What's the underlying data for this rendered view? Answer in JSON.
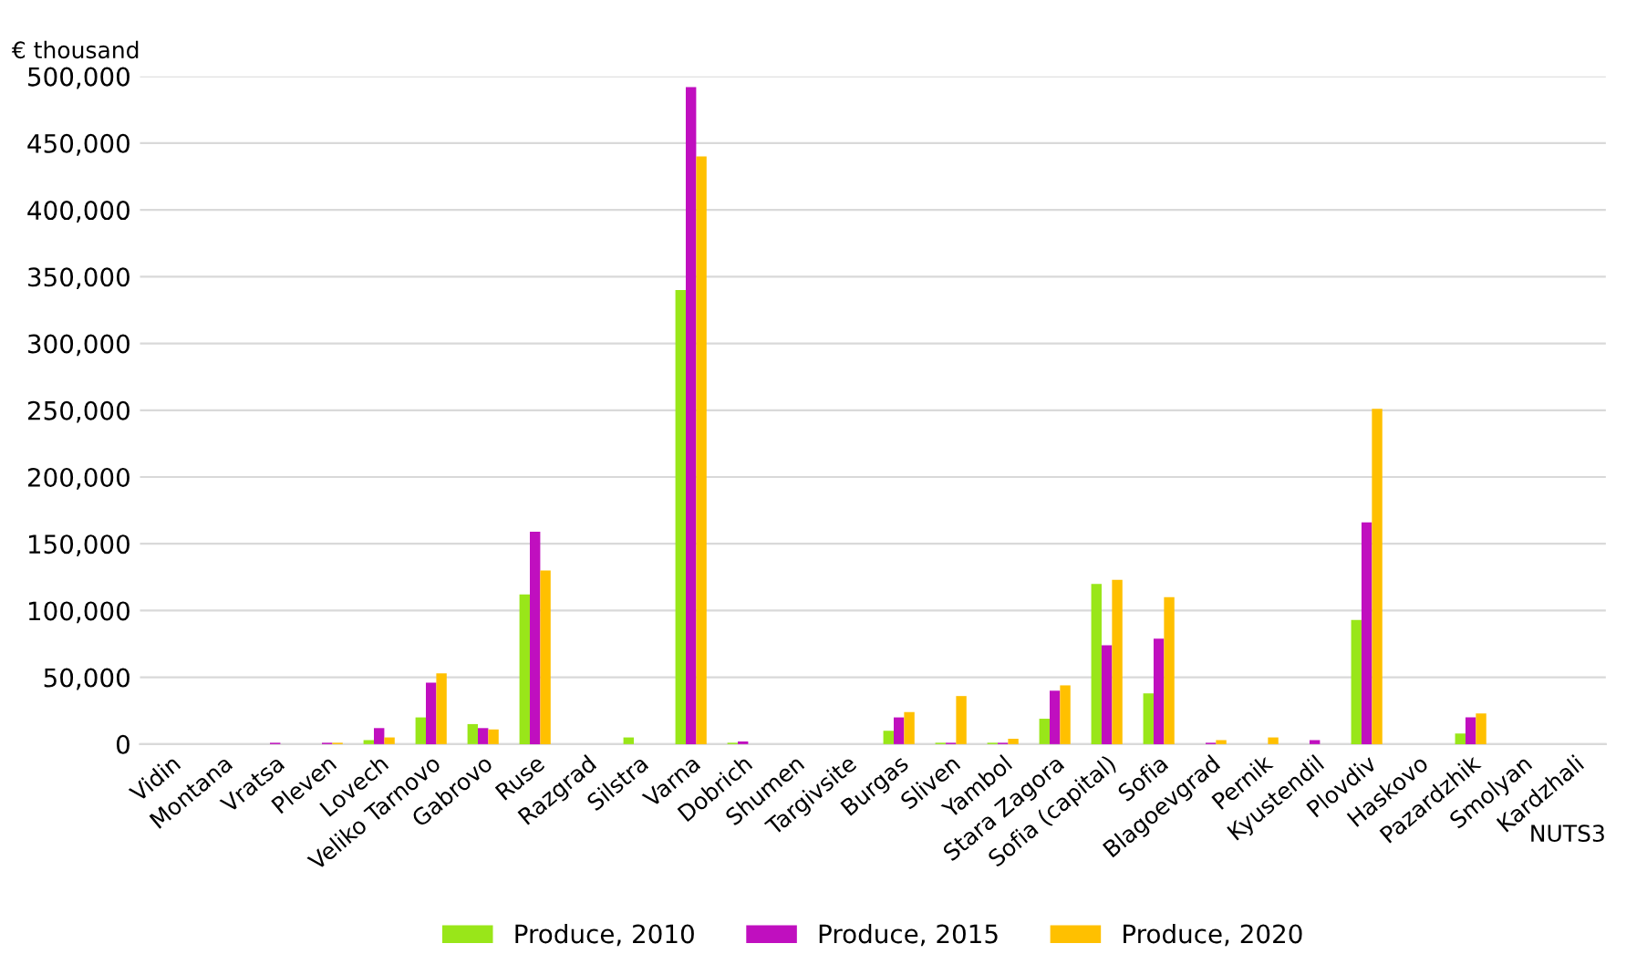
{
  "chart_data": {
    "type": "bar",
    "ylabel": "€ thousand",
    "xlabel": "NUTS3",
    "categories": [
      "Vidin",
      "Montana",
      "Vratsa",
      "Pleven",
      "Lovech",
      "Veliko Tarnovo",
      "Gabrovo",
      "Ruse",
      "Razgrad",
      "Silstra",
      "Varna",
      "Dobrich",
      "Shumen",
      "Targivsite",
      "Burgas",
      "Sliven",
      "Yambol",
      "Stara Zagora",
      "Sofia (capital)",
      "Sofia",
      "Blagoevgrad",
      "Pernik",
      "Kyustendil",
      "Plovdiv",
      "Haskovo",
      "Pazardzhik",
      "Smolyan",
      "Kardzhali"
    ],
    "series": [
      {
        "name": "Produce, 2010",
        "color": "#99e619",
        "values": [
          0,
          0,
          0,
          0,
          3000,
          20000,
          15000,
          112000,
          0,
          5000,
          340000,
          1000,
          0,
          0,
          10000,
          1000,
          1000,
          19000,
          120000,
          38000,
          0,
          0,
          0,
          93000,
          0,
          8000,
          0,
          0
        ]
      },
      {
        "name": "Produce, 2015",
        "color": "#c00fbf",
        "values": [
          0,
          0,
          1000,
          1000,
          12000,
          46000,
          12000,
          159000,
          0,
          0,
          492000,
          2000,
          0,
          0,
          20000,
          1000,
          1000,
          40000,
          74000,
          79000,
          1000,
          0,
          3000,
          166000,
          0,
          20000,
          0,
          0
        ]
      },
      {
        "name": "Produce, 2020",
        "color": "#ffc000",
        "values": [
          0,
          0,
          0,
          1000,
          5000,
          53000,
          11000,
          130000,
          0,
          0,
          440000,
          0,
          0,
          0,
          24000,
          36000,
          4000,
          44000,
          123000,
          110000,
          3000,
          5000,
          0,
          251000,
          0,
          23000,
          0,
          0
        ]
      }
    ],
    "ylim": [
      0,
      500000
    ],
    "yticks": [
      {
        "value": 0,
        "label": "0"
      },
      {
        "value": 50000,
        "label": "50,000"
      },
      {
        "value": 100000,
        "label": "100,000"
      },
      {
        "value": 150000,
        "label": "150,000"
      },
      {
        "value": 200000,
        "label": "200,000"
      },
      {
        "value": 250000,
        "label": "250,000"
      },
      {
        "value": 300000,
        "label": "300,000"
      },
      {
        "value": 350000,
        "label": "350,000"
      },
      {
        "value": 400000,
        "label": "400,000"
      },
      {
        "value": 450000,
        "label": "450,000"
      },
      {
        "value": 500000,
        "label": "500,000"
      }
    ],
    "grid": "y",
    "legend": "bottom"
  }
}
